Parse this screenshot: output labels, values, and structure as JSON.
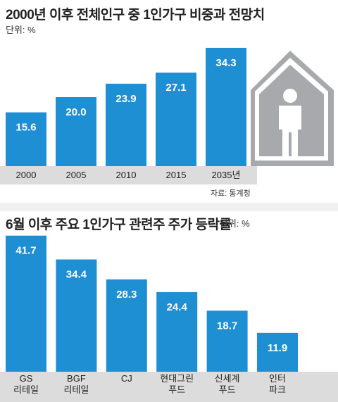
{
  "chart_data": [
    {
      "type": "bar",
      "title": "2000년 이후 전체인구 중 1인가구 비중과 전망치",
      "unit": "단위: %",
      "source": "자료: 통계청",
      "categories": [
        "2000",
        "2005",
        "2010",
        "2015",
        "2035년"
      ],
      "values": [
        15.6,
        20.0,
        23.9,
        27.1,
        34.3
      ],
      "value_labels": [
        "15.6",
        "20.0",
        "23.9",
        "27.1",
        "34.3"
      ],
      "ylim": [
        0,
        40
      ],
      "grid": false,
      "colors": {
        "bar": "#1f8fd3",
        "tick_band": "#dcdcdc",
        "house": "#a7a9ac"
      },
      "icon": "house-person-icon"
    },
    {
      "type": "bar",
      "title": "6월 이후 주요 1인가구 관련주 주가 등락률",
      "unit": "단위: %",
      "categories": [
        "GS\n리테일",
        "BGF\n리테일",
        "CJ",
        "현대그린\n푸드",
        "신세계\n푸드",
        "인터\n파크"
      ],
      "values": [
        41.7,
        34.4,
        28.3,
        24.4,
        18.7,
        11.9
      ],
      "value_labels": [
        "41.7",
        "34.4",
        "28.3",
        "24.4",
        "18.7",
        "11.9"
      ],
      "ylim": [
        0,
        45
      ],
      "grid": false,
      "colors": {
        "bar": "#1f8fd3",
        "tick_band": "#dcdcdc"
      }
    }
  ]
}
